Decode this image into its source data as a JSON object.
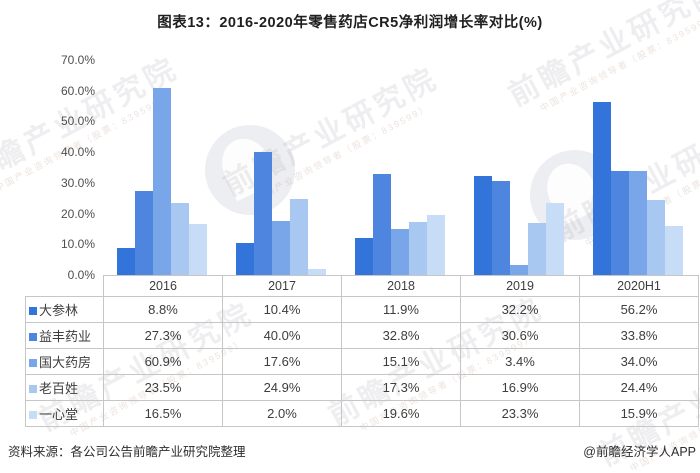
{
  "title": "图表13：2016-2020年零售药店CR5净利润增长率对比(%)",
  "chart_data": {
    "type": "bar",
    "categories": [
      "2016",
      "2017",
      "2018",
      "2019",
      "2020H1"
    ],
    "series": [
      {
        "name": "大参林",
        "color": "#3274d9",
        "values": [
          8.8,
          10.4,
          11.9,
          32.2,
          56.2
        ]
      },
      {
        "name": "益丰药业",
        "color": "#4e86df",
        "values": [
          27.3,
          40.0,
          32.8,
          30.6,
          33.8
        ]
      },
      {
        "name": "国大药房",
        "color": "#78a6e9",
        "values": [
          60.9,
          17.6,
          15.1,
          3.4,
          34.0
        ]
      },
      {
        "name": "老百姓",
        "color": "#a9c8f1",
        "values": [
          23.5,
          24.9,
          17.3,
          16.9,
          24.4
        ]
      },
      {
        "name": "一心堂",
        "color": "#c7dcf7",
        "values": [
          16.5,
          2.0,
          19.6,
          23.3,
          15.9
        ]
      }
    ],
    "title": "图表13：2016-2020年零售药店CR5净利润增长率对比(%)",
    "xlabel": "",
    "ylabel": "",
    "ylim": [
      0,
      70
    ],
    "ytick_labels": [
      "70.0%",
      "60.0%",
      "50.0%",
      "40.0%",
      "30.0%",
      "20.0%",
      "10.0%",
      "0.0%"
    ],
    "value_suffix": "%",
    "grid": false,
    "legend_position": "table-left-column"
  },
  "footer": {
    "source": "资料来源：各公司公告前瞻产业研究院整理",
    "credit": "@前瞻经济学人APP"
  },
  "watermark": {
    "text": "前瞻产业研究院",
    "subtext": "中国产业咨询领导者（股票：839599）"
  }
}
